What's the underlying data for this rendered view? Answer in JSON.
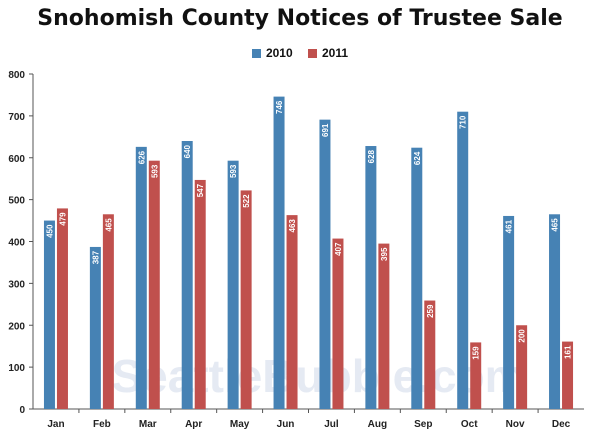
{
  "watermark": "SeattleBubble.com",
  "chart_data": {
    "type": "bar",
    "title": "Snohomish County Notices of Trustee Sale",
    "xlabel": "",
    "ylabel": "",
    "categories": [
      "Jan",
      "Feb",
      "Mar",
      "Apr",
      "May",
      "Jun",
      "Jul",
      "Aug",
      "Sep",
      "Oct",
      "Nov",
      "Dec"
    ],
    "series": [
      {
        "name": "2010",
        "color": "#4682b4",
        "values": [
          450,
          387,
          626,
          640,
          593,
          746,
          691,
          628,
          624,
          710,
          461,
          465
        ]
      },
      {
        "name": "2011",
        "color": "#c0504d",
        "values": [
          479,
          465,
          593,
          547,
          522,
          463,
          407,
          395,
          259,
          159,
          200,
          161
        ]
      }
    ],
    "ylim": [
      0,
      800
    ],
    "yticks": [
      "0",
      "100",
      "200",
      "300",
      "400",
      "500",
      "600",
      "700",
      "800"
    ],
    "legend_position": "top-center",
    "grid": false
  }
}
